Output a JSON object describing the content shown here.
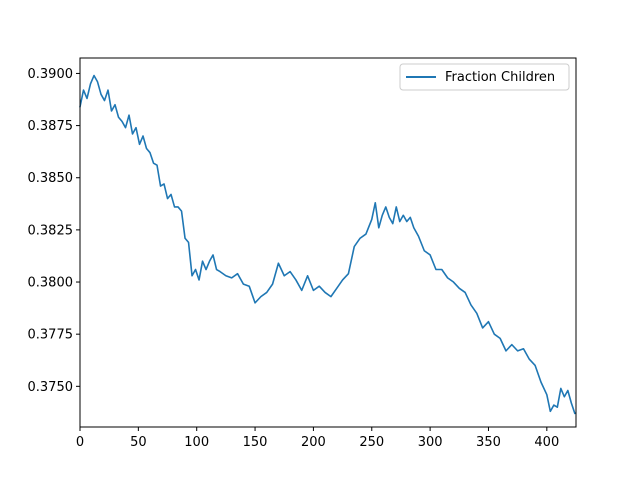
{
  "chart_data": {
    "type": "line",
    "title": "",
    "xlabel": "",
    "ylabel": "",
    "xlim": [
      0,
      425
    ],
    "ylim": [
      0.37305,
      0.39074
    ],
    "xticks": [
      0,
      50,
      100,
      150,
      200,
      250,
      300,
      350,
      400
    ],
    "yticks": [
      0.375,
      0.3775,
      0.38,
      0.3825,
      0.385,
      0.3875,
      0.39
    ],
    "ytick_labels": [
      "0.3750",
      "0.3775",
      "0.3800",
      "0.3825",
      "0.3850",
      "0.3875",
      "0.3900"
    ],
    "grid": false,
    "legend": {
      "placement": "top-right"
    },
    "series": [
      {
        "name": "Fraction Children",
        "color": "#1f77b4",
        "x": [
          0,
          3,
          6,
          9,
          12,
          15,
          18,
          21,
          24,
          27,
          30,
          33,
          36,
          39,
          42,
          45,
          48,
          51,
          54,
          57,
          60,
          63,
          66,
          69,
          72,
          75,
          78,
          81,
          84,
          87,
          90,
          93,
          96,
          99,
          102,
          105,
          108,
          111,
          114,
          117,
          120,
          125,
          130,
          135,
          140,
          145,
          150,
          155,
          160,
          165,
          170,
          175,
          180,
          185,
          190,
          195,
          200,
          205,
          210,
          215,
          220,
          225,
          230,
          235,
          240,
          245,
          250,
          253,
          256,
          259,
          262,
          265,
          268,
          271,
          274,
          277,
          280,
          283,
          286,
          290,
          295,
          300,
          305,
          310,
          315,
          320,
          325,
          330,
          335,
          340,
          345,
          350,
          355,
          360,
          365,
          370,
          375,
          380,
          385,
          390,
          395,
          400,
          403,
          406,
          409,
          412,
          415,
          418,
          421,
          424
        ],
        "y": [
          0.3884,
          0.3892,
          0.3888,
          0.3895,
          0.3899,
          0.3896,
          0.389,
          0.3887,
          0.3892,
          0.3882,
          0.3885,
          0.3879,
          0.3877,
          0.3874,
          0.388,
          0.3871,
          0.3874,
          0.3866,
          0.387,
          0.3864,
          0.3862,
          0.3857,
          0.3856,
          0.3846,
          0.3847,
          0.384,
          0.3842,
          0.3836,
          0.3836,
          0.3834,
          0.3821,
          0.3819,
          0.3803,
          0.3806,
          0.3801,
          0.381,
          0.3806,
          0.381,
          0.3813,
          0.3806,
          0.3805,
          0.3803,
          0.3802,
          0.3804,
          0.3799,
          0.3798,
          0.379,
          0.3793,
          0.3795,
          0.3799,
          0.3809,
          0.3803,
          0.3805,
          0.3801,
          0.3796,
          0.3803,
          0.3796,
          0.3798,
          0.3795,
          0.3793,
          0.3797,
          0.3801,
          0.3804,
          0.3817,
          0.3821,
          0.3823,
          0.383,
          0.3838,
          0.3826,
          0.3832,
          0.3836,
          0.3831,
          0.3828,
          0.3836,
          0.3829,
          0.3832,
          0.3829,
          0.3831,
          0.3826,
          0.3822,
          0.3815,
          0.3813,
          0.3806,
          0.3806,
          0.3802,
          0.38,
          0.3797,
          0.3795,
          0.3789,
          0.3785,
          0.3778,
          0.3781,
          0.3775,
          0.3773,
          0.3767,
          0.377,
          0.3767,
          0.3768,
          0.3763,
          0.376,
          0.3752,
          0.3746,
          0.3738,
          0.3741,
          0.374,
          0.3749,
          0.3745,
          0.3748,
          0.3742,
          0.3737
        ]
      }
    ]
  }
}
